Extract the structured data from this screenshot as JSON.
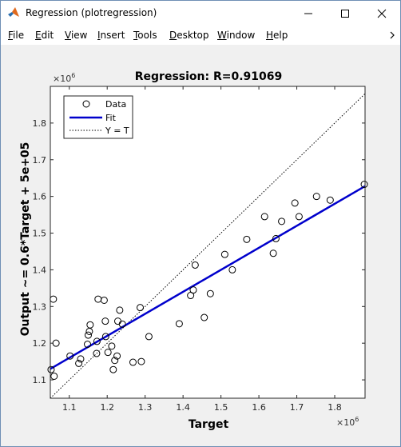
{
  "window": {
    "title": "Regression (plotregression)",
    "app_icon": "matlab-logo-icon",
    "controls": {
      "minimize_icon": "minimize-icon",
      "maximize_icon": "maximize-icon",
      "close_icon": "close-icon"
    }
  },
  "menubar": {
    "items": [
      {
        "label": "File",
        "accel": "F",
        "rest": "ile"
      },
      {
        "label": "Edit",
        "accel": "E",
        "rest": "dit"
      },
      {
        "label": "View",
        "accel": "V",
        "rest": "iew"
      },
      {
        "label": "Insert",
        "accel": "I",
        "rest": "nsert"
      },
      {
        "label": "Tools",
        "accel": "T",
        "rest": "ools"
      },
      {
        "label": "Desktop",
        "accel": "D",
        "rest": "esktop"
      },
      {
        "label": "Window",
        "accel": "W",
        "rest": "indow"
      },
      {
        "label": "Help",
        "accel": "H",
        "rest": "elp"
      }
    ],
    "overflow_icon": "chevron-right-icon"
  },
  "chart_data": {
    "type": "scatter",
    "title": "Regression: R=0.91069",
    "xlabel": "Target",
    "ylabel": "Output ~= 0.6*Target + 5e+05",
    "x_exponent": "×10",
    "x_exponent_power": "6",
    "y_exponent": "×10",
    "y_exponent_power": "6",
    "xlim": [
      1.05,
      1.88
    ],
    "ylim": [
      1.05,
      1.9
    ],
    "xticks": [
      1.1,
      1.2,
      1.3,
      1.4,
      1.5,
      1.6,
      1.7,
      1.8
    ],
    "yticks": [
      1.1,
      1.2,
      1.3,
      1.4,
      1.5,
      1.6,
      1.7,
      1.8
    ],
    "xtick_labels": [
      "1.1",
      "1.2",
      "1.3",
      "1.4",
      "1.5",
      "1.6",
      "1.7",
      "1.8"
    ],
    "ytick_labels": [
      "1.1",
      "1.2",
      "1.3",
      "1.4",
      "1.5",
      "1.6",
      "1.7",
      "1.8"
    ],
    "grid": false,
    "legend_position": "top-left",
    "legend": [
      {
        "name": "Data",
        "style": "circle-marker"
      },
      {
        "name": "Fit",
        "style": "solid-line",
        "color": "#0000cc"
      },
      {
        "name": "Y = T",
        "style": "dotted-line",
        "color": "#000000"
      }
    ],
    "fit": {
      "slope": 0.6,
      "intercept": 0.5,
      "color": "#0000cc"
    },
    "data_points": [
      {
        "x": 1.052,
        "y": 1.128
      },
      {
        "x": 1.058,
        "y": 1.32
      },
      {
        "x": 1.06,
        "y": 1.11
      },
      {
        "x": 1.065,
        "y": 1.2
      },
      {
        "x": 1.102,
        "y": 1.165
      },
      {
        "x": 1.125,
        "y": 1.145
      },
      {
        "x": 1.13,
        "y": 1.157
      },
      {
        "x": 1.148,
        "y": 1.197
      },
      {
        "x": 1.15,
        "y": 1.222
      },
      {
        "x": 1.153,
        "y": 1.232
      },
      {
        "x": 1.155,
        "y": 1.25
      },
      {
        "x": 1.172,
        "y": 1.172
      },
      {
        "x": 1.173,
        "y": 1.205
      },
      {
        "x": 1.176,
        "y": 1.32
      },
      {
        "x": 1.192,
        "y": 1.317
      },
      {
        "x": 1.195,
        "y": 1.26
      },
      {
        "x": 1.196,
        "y": 1.218
      },
      {
        "x": 1.202,
        "y": 1.175
      },
      {
        "x": 1.212,
        "y": 1.192
      },
      {
        "x": 1.216,
        "y": 1.128
      },
      {
        "x": 1.22,
        "y": 1.153
      },
      {
        "x": 1.226,
        "y": 1.165
      },
      {
        "x": 1.228,
        "y": 1.26
      },
      {
        "x": 1.233,
        "y": 1.29
      },
      {
        "x": 1.24,
        "y": 1.252
      },
      {
        "x": 1.268,
        "y": 1.148
      },
      {
        "x": 1.287,
        "y": 1.297
      },
      {
        "x": 1.29,
        "y": 1.15
      },
      {
        "x": 1.31,
        "y": 1.218
      },
      {
        "x": 1.39,
        "y": 1.253
      },
      {
        "x": 1.42,
        "y": 1.33
      },
      {
        "x": 1.427,
        "y": 1.345
      },
      {
        "x": 1.432,
        "y": 1.413
      },
      {
        "x": 1.456,
        "y": 1.27
      },
      {
        "x": 1.472,
        "y": 1.335
      },
      {
        "x": 1.51,
        "y": 1.442
      },
      {
        "x": 1.53,
        "y": 1.4
      },
      {
        "x": 1.568,
        "y": 1.483
      },
      {
        "x": 1.615,
        "y": 1.545
      },
      {
        "x": 1.638,
        "y": 1.445
      },
      {
        "x": 1.645,
        "y": 1.485
      },
      {
        "x": 1.66,
        "y": 1.532
      },
      {
        "x": 1.695,
        "y": 1.582
      },
      {
        "x": 1.706,
        "y": 1.545
      },
      {
        "x": 1.752,
        "y": 1.6
      },
      {
        "x": 1.788,
        "y": 1.59
      },
      {
        "x": 1.878,
        "y": 1.633
      }
    ]
  }
}
